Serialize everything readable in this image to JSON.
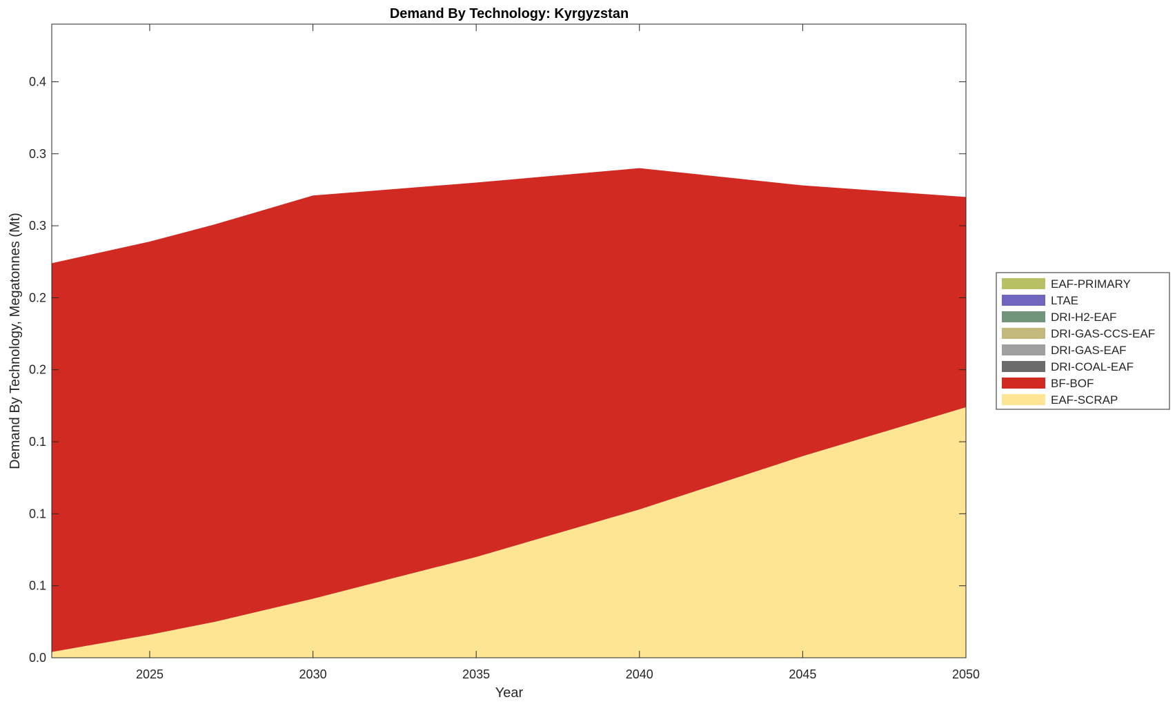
{
  "chart_data": {
    "type": "area",
    "stacked": true,
    "title": "Demand By Technology: Kyrgyzstan",
    "xlabel": "Year",
    "ylabel": "Demand By Technology, Megatonnes (Mt)",
    "xlim": [
      2022,
      2050
    ],
    "ylim": [
      0,
      0.44
    ],
    "x_ticks": [
      "2025",
      "2030",
      "2035",
      "2040",
      "2045",
      "2050"
    ],
    "y_ticks": [
      {
        "value": 0.0,
        "label": "0.0"
      },
      {
        "value": 0.05,
        "label": "0.1"
      },
      {
        "value": 0.1,
        "label": "0.1"
      },
      {
        "value": 0.15,
        "label": "0.1"
      },
      {
        "value": 0.2,
        "label": "0.2"
      },
      {
        "value": 0.25,
        "label": "0.2"
      },
      {
        "value": 0.3,
        "label": "0.3"
      },
      {
        "value": 0.35,
        "label": "0.3"
      },
      {
        "value": 0.4,
        "label": "0.4"
      }
    ],
    "grid": false,
    "legend_position": "outside right",
    "x": [
      2022,
      2025,
      2027,
      2030,
      2035,
      2040,
      2045,
      2050
    ],
    "series": [
      {
        "name": "EAF-SCRAP",
        "color": "#fde594",
        "values": [
          0.004,
          0.016,
          0.025,
          0.041,
          0.07,
          0.103,
          0.14,
          0.174
        ]
      },
      {
        "name": "BF-BOF",
        "color": "#d12a23",
        "values": [
          0.27,
          0.273,
          0.276,
          0.28,
          0.26,
          0.237,
          0.188,
          0.146
        ]
      },
      {
        "name": "DRI-COAL-EAF",
        "color": "#6c6c6c",
        "values": [
          0,
          0,
          0,
          0,
          0,
          0,
          0,
          0
        ]
      },
      {
        "name": "DRI-GAS-EAF",
        "color": "#a0a0a0",
        "values": [
          0,
          0,
          0,
          0,
          0,
          0,
          0,
          0
        ]
      },
      {
        "name": "DRI-GAS-CCS-EAF",
        "color": "#c4b97d",
        "values": [
          0,
          0,
          0,
          0,
          0,
          0,
          0,
          0
        ]
      },
      {
        "name": "DRI-H2-EAF",
        "color": "#70957a",
        "values": [
          0,
          0,
          0,
          0,
          0,
          0,
          0,
          0
        ]
      },
      {
        "name": "LTAE",
        "color": "#7166bd",
        "values": [
          0,
          0,
          0,
          0,
          0,
          0,
          0,
          0
        ]
      },
      {
        "name": "EAF-PRIMARY",
        "color": "#b7c163",
        "values": [
          0,
          0,
          0,
          0,
          0,
          0,
          0,
          0
        ]
      }
    ],
    "legend_order": [
      "EAF-PRIMARY",
      "LTAE",
      "DRI-H2-EAF",
      "DRI-GAS-CCS-EAF",
      "DRI-GAS-EAF",
      "DRI-COAL-EAF",
      "BF-BOF",
      "EAF-SCRAP"
    ]
  }
}
